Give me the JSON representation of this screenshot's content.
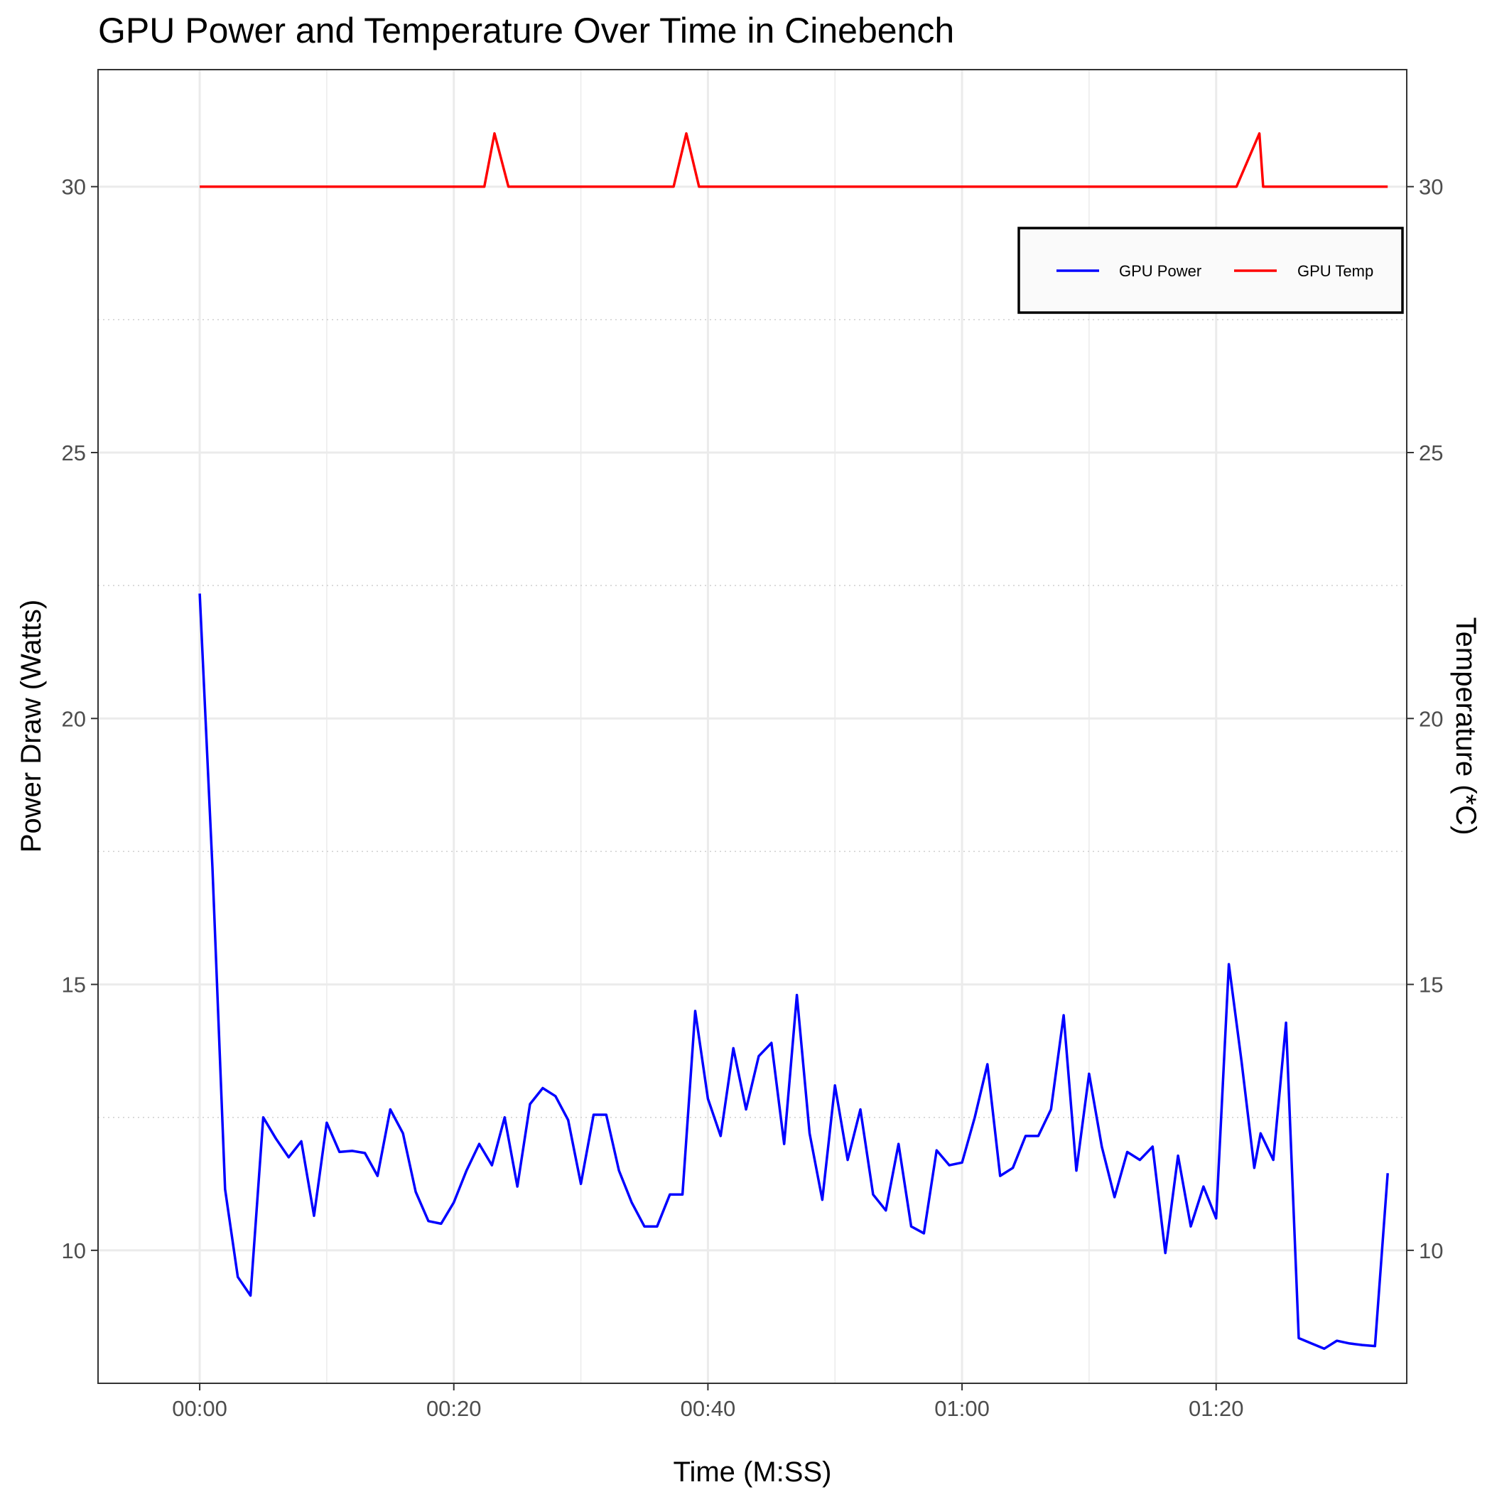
{
  "chart_data": {
    "type": "line",
    "title": "GPU Power and Temperature Over Time in Cinebench",
    "xlabel": "Time (M:SS)",
    "ylabel": "Power Draw (Watts)",
    "y2label": "Temperature (*C)",
    "xlim": [
      -8,
      95
    ],
    "ylim": [
      7.5,
      32.2
    ],
    "x_ticks": [
      0,
      20,
      40,
      60,
      80
    ],
    "x_tick_labels": [
      "00:00",
      "00:20",
      "00:40",
      "01:00",
      "01:20"
    ],
    "y_ticks": [
      10,
      15,
      20,
      25,
      30
    ],
    "y_tick_labels": [
      "10",
      "15",
      "20",
      "25",
      "30"
    ],
    "y2_ticks": [
      10,
      15,
      20,
      25,
      30
    ],
    "y2_tick_labels": [
      "10",
      "15",
      "20",
      "25",
      "30"
    ],
    "grid": true,
    "legend": {
      "position": "top-right",
      "entries": [
        "GPU Power",
        "GPU Temp"
      ]
    },
    "series": [
      {
        "name": "GPU Power",
        "color": "#0000ff",
        "x": [
          0,
          1,
          2,
          3,
          4,
          5,
          6,
          7,
          8,
          9,
          10,
          11,
          12,
          13,
          14,
          15,
          16,
          17,
          18,
          19,
          20,
          21,
          22,
          23,
          24,
          25,
          26,
          27,
          28,
          29,
          30,
          31,
          32,
          33,
          34,
          35,
          36,
          37,
          38,
          39,
          40,
          41,
          42,
          43,
          44,
          45,
          46,
          47,
          48,
          49,
          50,
          51,
          52,
          53,
          54,
          55,
          56,
          57,
          58,
          59,
          60,
          61,
          62,
          63,
          64,
          65,
          66,
          67,
          68,
          69,
          70,
          71,
          72,
          73,
          74,
          75,
          76,
          77,
          78,
          79,
          80,
          81,
          82,
          83,
          83.5,
          84.5,
          85.5,
          86.5,
          87.5,
          88.5,
          89.5,
          90.5,
          91.5,
          92.5,
          93.5
        ],
        "values": [
          22.35,
          17.2,
          11.15,
          9.5,
          9.15,
          12.5,
          12.1,
          11.75,
          12.05,
          10.65,
          12.4,
          11.85,
          11.87,
          11.83,
          11.4,
          12.65,
          12.2,
          11.1,
          10.55,
          10.5,
          10.9,
          11.5,
          12.0,
          11.6,
          12.5,
          11.2,
          12.75,
          13.05,
          12.9,
          12.45,
          11.25,
          12.55,
          12.55,
          11.5,
          10.9,
          10.45,
          10.45,
          11.05,
          11.05,
          14.5,
          12.85,
          12.15,
          13.8,
          12.65,
          13.65,
          13.9,
          12.0,
          14.8,
          12.2,
          10.95,
          13.1,
          11.7,
          12.65,
          11.05,
          10.75,
          12.0,
          10.45,
          10.32,
          11.88,
          11.6,
          11.65,
          12.5,
          13.5,
          11.4,
          11.55,
          12.15,
          12.15,
          12.65,
          14.42,
          11.5,
          13.32,
          11.95,
          11.0,
          11.85,
          11.7,
          11.95,
          9.95,
          11.78,
          10.45,
          11.2,
          10.6,
          15.38,
          13.55,
          11.55,
          12.2,
          11.7,
          14.28,
          8.35,
          8.25,
          8.15,
          8.3,
          8.25,
          8.22,
          8.2,
          11.45
        ]
      },
      {
        "name": "GPU Temp",
        "color": "#ff0000",
        "x": [
          0,
          22.4,
          23.2,
          24.3,
          37.3,
          38.3,
          39.3,
          81.6,
          83.4,
          83.7,
          93.5
        ],
        "values": [
          30,
          30,
          31,
          30,
          30,
          31,
          30,
          30,
          31,
          30,
          30
        ]
      }
    ]
  }
}
